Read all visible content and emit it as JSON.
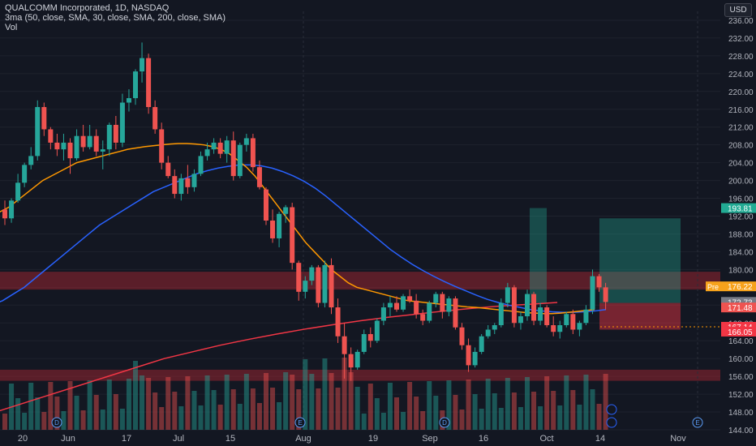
{
  "header": {
    "title": "QUALCOMM Incorporated, 1D, NASDAQ",
    "indicator": "3ma (50, close, SMA, 30, close, SMA, 200, close, SMA)",
    "volume_label": "Vol",
    "currency_button": "USD"
  },
  "colors": {
    "background": "#131722",
    "up": "#26a69a",
    "down": "#ef5350",
    "sma30": "#ff9800",
    "sma50": "#2962ff",
    "sma200": "#f23645",
    "grid": "#1e222d",
    "zone": "#b22833"
  },
  "chart_data": {
    "type": "candlestick",
    "y_axis": {
      "min": 144,
      "max": 238,
      "ticks": [
        144,
        148,
        152,
        156,
        160,
        164,
        168,
        172,
        176,
        180,
        184,
        188,
        192,
        196,
        200,
        204,
        208,
        212,
        216,
        220,
        224,
        228,
        232,
        236
      ]
    },
    "x_axis": {
      "tick_labels": [
        "20",
        "Jun",
        "17",
        "Jul",
        "15",
        "Aug",
        "19",
        "Sep",
        "16",
        "Oct",
        "14",
        "Nov"
      ]
    },
    "price_labels": [
      {
        "text": "193.81",
        "value": 193.81,
        "color": "#22ab94"
      },
      {
        "text": "176.22",
        "value": 176.22,
        "color": "#f7a21b",
        "prefix": "Pre"
      },
      {
        "text": "172.73",
        "value": 172.73,
        "color": "#787b86"
      },
      {
        "text": "171.48",
        "value": 171.48,
        "color": "#ef5350"
      },
      {
        "text": "167.14",
        "value": 167.14,
        "color": "#f23645"
      },
      {
        "text": "166.05",
        "value": 166.05,
        "color": "#f23645"
      }
    ],
    "zones": [
      {
        "from": 175.5,
        "to": 179.5
      },
      {
        "from": 155.0,
        "to": 157.5
      }
    ],
    "ohlc": [
      [
        193.5,
        195.5,
        190.0,
        191.5
      ],
      [
        191.5,
        196.0,
        190.5,
        195.5
      ],
      [
        195.5,
        201.5,
        195.0,
        199.5
      ],
      [
        199.5,
        204.0,
        198.5,
        203.5
      ],
      [
        203.5,
        207.5,
        202.5,
        205.5
      ],
      [
        205.5,
        218.0,
        204.5,
        216.5
      ],
      [
        216.5,
        217.5,
        210.0,
        211.5
      ],
      [
        211.5,
        212.0,
        207.0,
        208.5
      ],
      [
        208.5,
        210.5,
        205.5,
        207.0
      ],
      [
        207.0,
        210.5,
        204.5,
        208.5
      ],
      [
        208.5,
        209.5,
        201.5,
        205.0
      ],
      [
        205.0,
        211.5,
        204.5,
        210.0
      ],
      [
        210.0,
        212.5,
        206.5,
        207.5
      ],
      [
        207.5,
        212.5,
        207.0,
        210.0
      ],
      [
        210.0,
        211.5,
        205.5,
        206.5
      ],
      [
        206.5,
        209.0,
        202.5,
        207.0
      ],
      [
        207.0,
        213.0,
        205.5,
        212.5
      ],
      [
        212.5,
        214.5,
        207.0,
        208.5
      ],
      [
        208.5,
        219.5,
        207.5,
        217.5
      ],
      [
        217.5,
        220.5,
        215.5,
        218.5
      ],
      [
        218.5,
        225.0,
        217.0,
        224.5
      ],
      [
        224.5,
        231.0,
        222.0,
        227.5
      ],
      [
        227.5,
        228.5,
        215.0,
        216.5
      ],
      [
        216.5,
        218.0,
        210.5,
        211.5
      ],
      [
        211.5,
        213.0,
        202.5,
        204.0
      ],
      [
        204.0,
        205.5,
        200.5,
        201.0
      ],
      [
        201.0,
        202.5,
        196.0,
        197.0
      ],
      [
        197.0,
        201.5,
        195.5,
        200.5
      ],
      [
        200.5,
        203.5,
        197.0,
        198.5
      ],
      [
        198.5,
        202.5,
        197.5,
        201.5
      ],
      [
        201.5,
        206.5,
        201.0,
        205.5
      ],
      [
        205.5,
        208.5,
        204.5,
        207.0
      ],
      [
        207.0,
        209.5,
        206.0,
        208.5
      ],
      [
        208.5,
        209.5,
        205.0,
        206.0
      ],
      [
        206.0,
        210.0,
        204.0,
        209.0
      ],
      [
        209.0,
        211.0,
        200.0,
        201.0
      ],
      [
        201.0,
        208.5,
        200.5,
        208.0
      ],
      [
        208.0,
        210.5,
        206.5,
        209.5
      ],
      [
        209.5,
        210.5,
        202.0,
        203.0
      ],
      [
        203.0,
        204.5,
        198.0,
        198.5
      ],
      [
        198.0,
        198.5,
        190.0,
        191.0
      ],
      [
        191.0,
        193.5,
        186.0,
        187.0
      ],
      [
        187.0,
        193.0,
        185.0,
        192.5
      ],
      [
        192.5,
        194.5,
        190.5,
        194.0
      ],
      [
        194.0,
        195.0,
        180.0,
        181.5
      ],
      [
        181.5,
        182.0,
        173.0,
        175.0
      ],
      [
        175.0,
        178.5,
        173.5,
        177.5
      ],
      [
        177.5,
        181.0,
        176.5,
        180.5
      ],
      [
        180.5,
        181.0,
        171.5,
        172.5
      ],
      [
        172.5,
        182.0,
        171.5,
        181.0
      ],
      [
        181.0,
        182.5,
        170.0,
        171.5
      ],
      [
        171.5,
        173.5,
        163.5,
        165.0
      ],
      [
        165.0,
        168.0,
        155.5,
        161.0
      ],
      [
        161.0,
        162.5,
        155.0,
        158.0
      ],
      [
        158.0,
        162.0,
        157.5,
        161.5
      ],
      [
        161.5,
        166.5,
        161.0,
        165.5
      ],
      [
        165.5,
        167.0,
        162.5,
        164.0
      ],
      [
        164.0,
        169.0,
        163.5,
        168.5
      ],
      [
        168.5,
        172.5,
        167.5,
        171.5
      ],
      [
        171.5,
        174.0,
        169.5,
        172.5
      ],
      [
        172.5,
        174.0,
        170.5,
        171.0
      ],
      [
        171.0,
        174.5,
        170.5,
        174.0
      ],
      [
        174.0,
        175.5,
        172.5,
        173.0
      ],
      [
        173.0,
        174.5,
        169.0,
        170.0
      ],
      [
        170.0,
        171.0,
        167.5,
        168.5
      ],
      [
        168.5,
        173.0,
        168.0,
        172.5
      ],
      [
        172.5,
        175.0,
        171.5,
        174.5
      ],
      [
        174.5,
        175.0,
        169.0,
        170.5
      ],
      [
        170.5,
        174.0,
        169.5,
        173.5
      ],
      [
        173.5,
        174.0,
        166.5,
        167.0
      ],
      [
        167.0,
        168.0,
        162.0,
        163.0
      ],
      [
        163.0,
        164.5,
        157.0,
        158.5
      ],
      [
        158.5,
        162.5,
        158.0,
        161.5
      ],
      [
        161.5,
        165.5,
        161.0,
        165.0
      ],
      [
        165.0,
        167.5,
        164.5,
        166.5
      ],
      [
        166.5,
        168.0,
        165.5,
        167.5
      ],
      [
        167.5,
        173.5,
        167.0,
        172.5
      ],
      [
        172.5,
        177.0,
        171.5,
        176.0
      ],
      [
        176.0,
        176.5,
        167.0,
        168.0
      ],
      [
        168.0,
        170.5,
        166.5,
        169.5
      ],
      [
        169.5,
        175.5,
        168.5,
        174.5
      ],
      [
        174.5,
        175.0,
        167.5,
        168.5
      ],
      [
        168.5,
        172.5,
        167.5,
        171.5
      ],
      [
        171.5,
        172.0,
        167.0,
        167.5
      ],
      [
        167.5,
        169.5,
        165.0,
        166.0
      ],
      [
        166.0,
        168.5,
        164.5,
        167.5
      ],
      [
        167.5,
        170.5,
        167.0,
        170.0
      ],
      [
        170.0,
        171.0,
        165.5,
        166.5
      ],
      [
        166.5,
        168.5,
        165.0,
        168.0
      ],
      [
        168.0,
        172.0,
        167.5,
        171.0
      ],
      [
        171.0,
        180.0,
        170.0,
        178.5
      ],
      [
        178.5,
        179.0,
        175.0,
        176.0
      ],
      [
        176.0,
        177.0,
        171.0,
        172.7
      ]
    ],
    "sma30": [
      192,
      193,
      194,
      195.5,
      197,
      198.5,
      200,
      201,
      202,
      203,
      204,
      204.5,
      205,
      205.5,
      206,
      206.5,
      207,
      207.3,
      207.6,
      207.8,
      208,
      208.2,
      208.3,
      208.3,
      208.2,
      208,
      207.6,
      207,
      206,
      204.5,
      203,
      201,
      198.5,
      196,
      193.5,
      191,
      188.5,
      186,
      184,
      182,
      180,
      178.5,
      177,
      176,
      175.5,
      175,
      174.5,
      174,
      173.5,
      173,
      172.8,
      172.6,
      172.4,
      172.2,
      172,
      171.8,
      171.6,
      171.5,
      171.3,
      171.1,
      170.9,
      170.7,
      170.5,
      170.3,
      170.2,
      170.1,
      170.1,
      170.2,
      170.4,
      170.6,
      170.8,
      171
    ],
    "sma30_start": 0,
    "sma50": [
      172,
      173,
      174.5,
      176,
      178,
      180,
      182,
      184,
      186,
      188,
      190,
      191.5,
      193,
      194.5,
      196,
      197.5,
      198.5,
      199.5,
      200.5,
      201.5,
      202.2,
      202.8,
      203.2,
      203.5,
      203.5,
      203.3,
      202.8,
      202,
      201,
      199.8,
      198.3,
      196.5,
      194.5,
      192.5,
      190.5,
      188.5,
      186.5,
      184.5,
      182.8,
      181.2,
      179.8,
      178.5,
      177.3,
      176.2,
      175.2,
      174.2,
      173.3,
      172.6,
      172,
      171.5,
      171,
      170.7,
      170.5,
      170.4,
      170.4,
      170.5,
      170.7,
      171
    ],
    "sma200": [
      144,
      146,
      148,
      150,
      152,
      154,
      156,
      158,
      160,
      161.5,
      163,
      164.3,
      165.5,
      166.6,
      167.6,
      168.5,
      169.3,
      170,
      170.7,
      171.3,
      171.8,
      172.2,
      172.6
    ]
  }
}
